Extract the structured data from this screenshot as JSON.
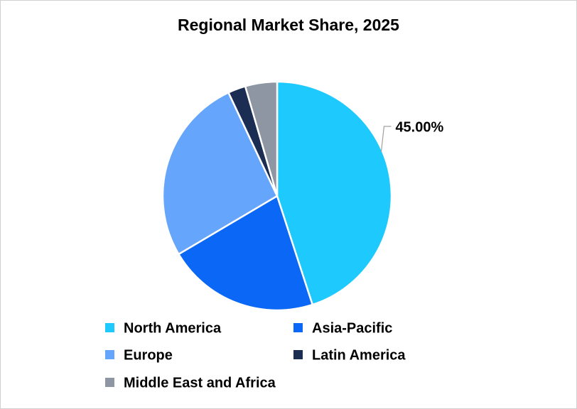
{
  "chart_data": {
    "type": "pie",
    "title": "Regional Market Share, 2025",
    "categories": [
      "North America",
      "Asia-Pacific",
      "Europe",
      "Latin America",
      "Middle East and Africa"
    ],
    "values": [
      45,
      21.5,
      26.5,
      2.5,
      4.5
    ],
    "value_labels": [
      "45.00%",
      null,
      null,
      null,
      null
    ],
    "colors": [
      "#1ec9fd",
      "#0b67f5",
      "#65a5fb",
      "#1b2d52",
      "#8e96a4"
    ],
    "legend": "bottom"
  }
}
